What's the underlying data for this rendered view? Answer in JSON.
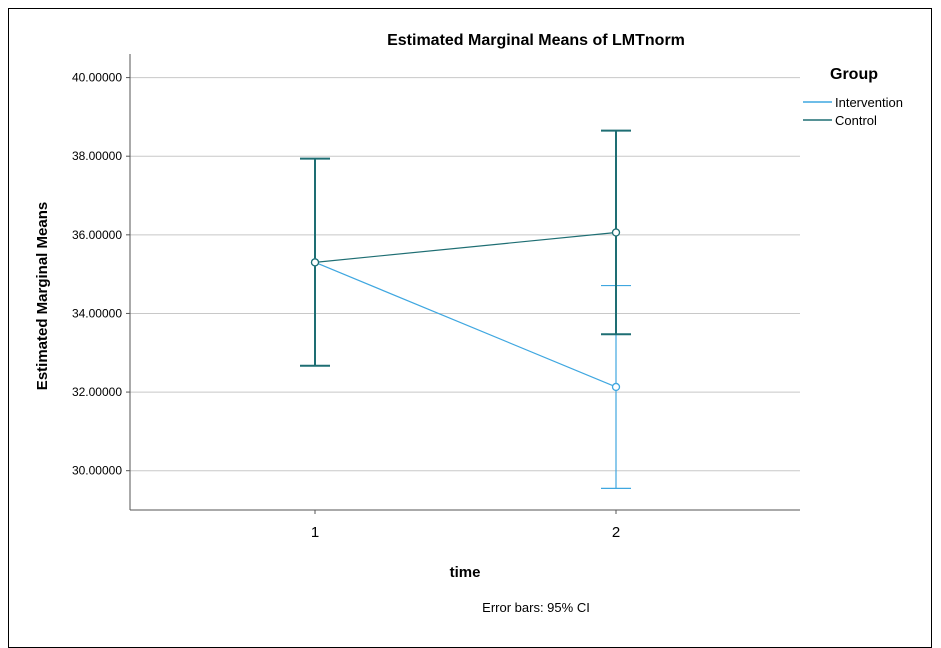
{
  "chart_data": {
    "type": "line",
    "title": "Estimated Marginal Means of LMTnorm",
    "xlabel": "time",
    "ylabel": "Estimated Marginal Means",
    "categories": [
      "1",
      "2"
    ],
    "ylim": [
      29.0,
      40.6
    ],
    "yticks": [
      "30.00000",
      "32.00000",
      "34.00000",
      "36.00000",
      "38.00000",
      "40.00000"
    ],
    "grid": "horizontal",
    "legend": {
      "title": "Group",
      "placement": "top-right"
    },
    "series": [
      {
        "name": "Intervention",
        "color": "#3fa7e0",
        "values": [
          35.3,
          32.13
        ],
        "ci_lower": [
          32.67,
          29.55
        ],
        "ci_upper": [
          37.94,
          34.71
        ]
      },
      {
        "name": "Control",
        "color": "#1e6e73",
        "values": [
          35.3,
          36.06
        ],
        "ci_lower": [
          32.67,
          33.47
        ],
        "ci_upper": [
          37.94,
          38.65
        ]
      }
    ],
    "footnote": "Error bars: 95% CI"
  }
}
